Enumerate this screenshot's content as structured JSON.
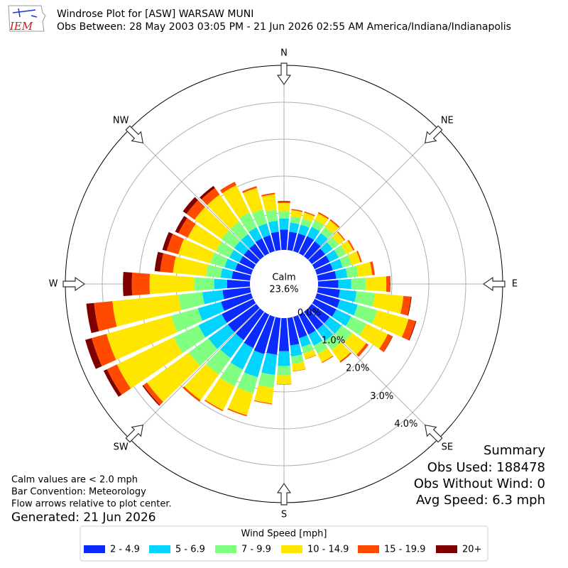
{
  "chart_data": {
    "type": "windrose",
    "logo": "IEM",
    "title": "Windrose Plot for [ASW] WARSAW MUNI",
    "subtitle": "Obs Between: 28 May 2003 03:05 PM - 21 Jun 2026 02:55 AM America/Indiana/Indianapolis",
    "calm_label": "Calm",
    "calm_value": 23.6,
    "calm_value_label": "23.6%",
    "x": [
      0,
      10,
      20,
      30,
      40,
      50,
      60,
      70,
      80,
      90,
      100,
      110,
      120,
      130,
      140,
      150,
      160,
      170,
      180,
      190,
      200,
      210,
      220,
      230,
      240,
      250,
      260,
      270,
      280,
      290,
      300,
      310,
      320,
      330,
      340,
      350
    ],
    "xticks": [
      {
        "value": 0,
        "label": "N"
      },
      {
        "value": 45,
        "label": "NE"
      },
      {
        "value": 90,
        "label": "E"
      },
      {
        "value": 135,
        "label": "SE"
      },
      {
        "value": 180,
        "label": "S"
      },
      {
        "value": 225,
        "label": "SW"
      },
      {
        "value": 270,
        "label": "W"
      },
      {
        "value": 315,
        "label": "NW"
      }
    ],
    "ylim": [
      0,
      5
    ],
    "yticks": [
      {
        "value": 0,
        "label": "0.0%"
      },
      {
        "value": 1,
        "label": "1.0%"
      },
      {
        "value": 2,
        "label": "2.0%"
      },
      {
        "value": 3,
        "label": "3.0%"
      },
      {
        "value": 4,
        "label": "4.0%"
      }
    ],
    "grid": true,
    "legend_title": "Wind Speed [mph]",
    "series": [
      {
        "name": "2 - 4.9",
        "color": "#0a2aff",
        "values": [
          0.55,
          0.5,
          0.5,
          0.52,
          0.5,
          0.45,
          0.45,
          0.45,
          0.5,
          0.55,
          0.6,
          0.65,
          0.65,
          0.6,
          0.6,
          0.6,
          0.6,
          0.75,
          0.9,
          1.0,
          1.05,
          1.0,
          0.95,
          0.95,
          0.95,
          0.85,
          0.75,
          0.62,
          0.5,
          0.45,
          0.42,
          0.42,
          0.42,
          0.45,
          0.45,
          0.5
        ]
      },
      {
        "name": "5 - 6.9",
        "color": "#00d4ff",
        "values": [
          0.3,
          0.25,
          0.25,
          0.28,
          0.28,
          0.25,
          0.27,
          0.28,
          0.3,
          0.35,
          0.45,
          0.5,
          0.45,
          0.4,
          0.38,
          0.33,
          0.25,
          0.3,
          0.4,
          0.55,
          0.65,
          0.65,
          0.6,
          0.65,
          0.7,
          0.65,
          0.55,
          0.35,
          0.3,
          0.3,
          0.3,
          0.32,
          0.32,
          0.33,
          0.33,
          0.3
        ]
      },
      {
        "name": "7 - 9.9",
        "color": "#80ff80",
        "values": [
          0.2,
          0.17,
          0.17,
          0.2,
          0.2,
          0.2,
          0.22,
          0.25,
          0.3,
          0.4,
          0.5,
          0.55,
          0.45,
          0.35,
          0.3,
          0.25,
          0.18,
          0.2,
          0.25,
          0.35,
          0.45,
          0.5,
          0.55,
          0.65,
          0.75,
          0.75,
          0.65,
          0.54,
          0.4,
          0.4,
          0.4,
          0.42,
          0.42,
          0.45,
          0.4,
          0.3
        ]
      },
      {
        "name": "10 - 14.9",
        "color": "#ffe600",
        "values": [
          0.22,
          0.17,
          0.17,
          0.2,
          0.22,
          0.19,
          0.22,
          0.25,
          0.38,
          0.55,
          0.78,
          0.88,
          0.65,
          0.47,
          0.38,
          0.25,
          0.16,
          0.2,
          0.24,
          0.43,
          0.62,
          0.72,
          0.85,
          1.4,
          1.7,
          1.82,
          1.8,
          1.21,
          0.9,
          0.9,
          0.85,
          0.9,
          0.9,
          0.82,
          0.6,
          0.42
        ]
      },
      {
        "name": "15 - 19.9",
        "color": "#ff4a00",
        "values": [
          0.05,
          0.03,
          0.03,
          0.04,
          0.04,
          0.03,
          0.04,
          0.04,
          0.07,
          0.1,
          0.2,
          0.2,
          0.14,
          0.08,
          0.04,
          0.02,
          0.01,
          0.01,
          0.01,
          0.02,
          0.03,
          0.03,
          0.05,
          0.12,
          0.3,
          0.42,
          0.5,
          0.48,
          0.35,
          0.33,
          0.28,
          0.27,
          0.22,
          0.1,
          0.05,
          0.04
        ]
      },
      {
        "name": "20+",
        "color": "#800000",
        "values": [
          0.01,
          0,
          0,
          0,
          0,
          0,
          0,
          0,
          0,
          0.01,
          0.02,
          0.02,
          0.01,
          0,
          0,
          0,
          0,
          0,
          0,
          0,
          0,
          0,
          0,
          0.03,
          0.1,
          0.18,
          0.21,
          0.24,
          0.15,
          0.12,
          0.1,
          0.12,
          0.07,
          0,
          0,
          0
        ]
      }
    ],
    "notes": [
      "Calm values are < 2.0 mph",
      "Bar Convention: Meteorology",
      "Flow arrows relative to plot center."
    ],
    "generated": "Generated: 21 Jun 2026",
    "summary": [
      "Summary",
      "Obs Used: 188478",
      "Obs Without Wind: 0",
      "Avg Speed: 6.3 mph"
    ]
  }
}
